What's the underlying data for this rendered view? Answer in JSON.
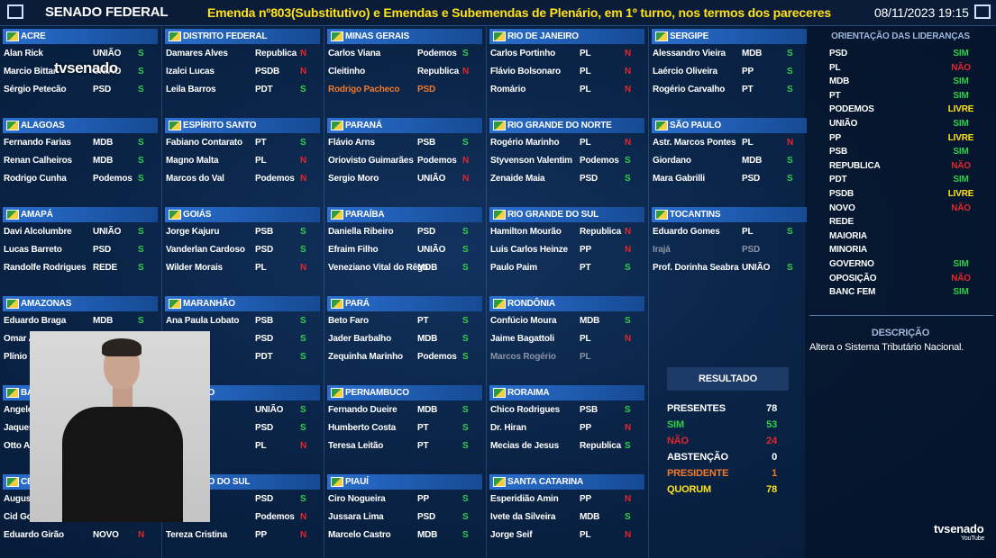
{
  "header": {
    "left": "SENADO FEDERAL",
    "title": "Emenda nº803(Substitutivo) e Emendas e Subemendas de Plenário, em 1º turno, nos termos dos pareceres",
    "datetime": "08/11/2023 19:15"
  },
  "vote_colors": {
    "S": "#2fd04a",
    "N": "#e3262b"
  },
  "columns": [
    {
      "states": [
        {
          "name": "ACRE",
          "senators": [
            {
              "name": "Alan Rick",
              "party": "UNIÃO",
              "vote": "S"
            },
            {
              "name": "Marcio Bittar",
              "party": "UNIÃO",
              "vote": "S"
            },
            {
              "name": "Sérgio Petecão",
              "party": "PSD",
              "vote": "S"
            }
          ]
        },
        {
          "name": "ALAGOAS",
          "senators": [
            {
              "name": "Fernando Farias",
              "party": "MDB",
              "vote": "S"
            },
            {
              "name": "Renan Calheiros",
              "party": "MDB",
              "vote": "S"
            },
            {
              "name": "Rodrigo Cunha",
              "party": "Podemos",
              "vote": "S"
            }
          ]
        },
        {
          "name": "AMAPÁ",
          "senators": [
            {
              "name": "Davi Alcolumbre",
              "party": "UNIÃO",
              "vote": "S"
            },
            {
              "name": "Lucas Barreto",
              "party": "PSD",
              "vote": "S"
            },
            {
              "name": "Randolfe Rodrigues",
              "party": "REDE",
              "vote": "S"
            }
          ]
        },
        {
          "name": "AMAZONAS",
          "senators": [
            {
              "name": "Eduardo Braga",
              "party": "MDB",
              "vote": "S"
            },
            {
              "name": "Omar Az"
            },
            {
              "name": "Plínio V"
            }
          ]
        },
        {
          "name": "BA",
          "senators": [
            {
              "name": "Angelo C"
            },
            {
              "name": "Jaques V"
            },
            {
              "name": "Otto Ale"
            }
          ]
        },
        {
          "name": "CE",
          "senators": [
            {
              "name": "Augusta"
            },
            {
              "name": "Cid Gon"
            },
            {
              "name": "Eduardo Girão",
              "party": "NOVO",
              "vote": "N"
            }
          ]
        }
      ]
    },
    {
      "states": [
        {
          "name": "DISTRITO FEDERAL",
          "senators": [
            {
              "name": "Damares Alves",
              "party": "Republica",
              "vote": "N"
            },
            {
              "name": "Izalci Lucas",
              "party": "PSDB",
              "vote": "N"
            },
            {
              "name": "Leila Barros",
              "party": "PDT",
              "vote": "S"
            }
          ]
        },
        {
          "name": "ESPÍRITO SANTO",
          "senators": [
            {
              "name": "Fabiano Contarato",
              "party": "PT",
              "vote": "S"
            },
            {
              "name": "Magno Malta",
              "party": "PL",
              "vote": "N"
            },
            {
              "name": "Marcos do Val",
              "party": "Podemos",
              "vote": "N"
            }
          ]
        },
        {
          "name": "GOIÁS",
          "senators": [
            {
              "name": "Jorge Kajuru",
              "party": "PSB",
              "vote": "S"
            },
            {
              "name": "Vanderlan Cardoso",
              "party": "PSD",
              "vote": "S"
            },
            {
              "name": "Wilder Morais",
              "party": "PL",
              "vote": "N"
            }
          ]
        },
        {
          "name": "MARANHÃO",
          "senators": [
            {
              "name": "Ana Paula Lobato",
              "party": "PSB",
              "vote": "S"
            },
            {
              "party": "PSD",
              "vote": "S"
            },
            {
              "party": "PDT",
              "vote": "S"
            }
          ]
        },
        {
          "name": "ROSSO",
          "senators": [
            {
              "name": "s",
              "party": "UNIÃO",
              "vote": "S"
            },
            {
              "name": "zetti",
              "party": "PSD",
              "vote": "S"
            },
            {
              "name": "gundes",
              "party": "PL",
              "vote": "N"
            }
          ]
        },
        {
          "name": "ROSSO DO SUL",
          "senators": [
            {
              "party": "PSD",
              "vote": "S"
            },
            {
              "name": "cke",
              "party": "Podemos",
              "vote": "N"
            },
            {
              "name": "Tereza Cristina",
              "party": "PP",
              "vote": "N"
            }
          ]
        }
      ]
    },
    {
      "states": [
        {
          "name": "MINAS GERAIS",
          "senators": [
            {
              "name": "Carlos Viana",
              "party": "Podemos",
              "vote": "S"
            },
            {
              "name": "Cleitinho",
              "party": "Republica",
              "vote": "N"
            },
            {
              "name": "Rodrigo Pacheco",
              "party": "PSD",
              "color": "#f07a2a"
            }
          ]
        },
        {
          "name": "PARANÁ",
          "senators": [
            {
              "name": "Flávio Arns",
              "party": "PSB",
              "vote": "S"
            },
            {
              "name": "Oriovisto Guimarães",
              "party": "Podemos",
              "vote": "N"
            },
            {
              "name": "Sergio Moro",
              "party": "UNIÃO",
              "vote": "N"
            }
          ]
        },
        {
          "name": "PARAÍBA",
          "senators": [
            {
              "name": "Daniella Ribeiro",
              "party": "PSD",
              "vote": "S"
            },
            {
              "name": "Efraim Filho",
              "party": "UNIÃO",
              "vote": "S"
            },
            {
              "name": "Veneziano Vital do Rêgo",
              "party": "MDB",
              "vote": "S"
            }
          ]
        },
        {
          "name": "PARÁ",
          "senators": [
            {
              "name": "Beto Faro",
              "party": "PT",
              "vote": "S"
            },
            {
              "name": "Jader Barbalho",
              "party": "MDB",
              "vote": "S"
            },
            {
              "name": "Zequinha Marinho",
              "party": "Podemos",
              "vote": "S"
            }
          ]
        },
        {
          "name": "PERNAMBUCO",
          "senators": [
            {
              "name": "Fernando Dueire",
              "party": "MDB",
              "vote": "S"
            },
            {
              "name": "Humberto Costa",
              "party": "PT",
              "vote": "S"
            },
            {
              "name": "Teresa Leitão",
              "party": "PT",
              "vote": "S"
            }
          ]
        },
        {
          "name": "PIAUÍ",
          "senators": [
            {
              "name": "Ciro Nogueira",
              "party": "PP",
              "vote": "S"
            },
            {
              "name": "Jussara Lima",
              "party": "PSD",
              "vote": "S"
            },
            {
              "name": "Marcelo Castro",
              "party": "MDB",
              "vote": "S"
            }
          ]
        }
      ]
    },
    {
      "states": [
        {
          "name": "RIO DE JANEIRO",
          "senators": [
            {
              "name": "Carlos Portinho",
              "party": "PL",
              "vote": "N"
            },
            {
              "name": "Flávio Bolsonaro",
              "party": "PL",
              "vote": "N"
            },
            {
              "name": "Romário",
              "party": "PL",
              "vote": "N"
            }
          ]
        },
        {
          "name": "RIO GRANDE DO NORTE",
          "senators": [
            {
              "name": "Rogério Marinho",
              "party": "PL",
              "vote": "N"
            },
            {
              "name": "Styvenson Valentim",
              "party": "Podemos",
              "vote": "S"
            },
            {
              "name": "Zenaide Maia",
              "party": "PSD",
              "vote": "S"
            }
          ]
        },
        {
          "name": "RIO GRANDE DO SUL",
          "senators": [
            {
              "name": "Hamilton Mourão",
              "party": "Republica",
              "vote": "N"
            },
            {
              "name": "Luis Carlos Heinze",
              "party": "PP",
              "vote": "N"
            },
            {
              "name": "Paulo Paim",
              "party": "PT",
              "vote": "S"
            }
          ]
        },
        {
          "name": "RONDÔNIA",
          "senators": [
            {
              "name": "Confúcio Moura",
              "party": "MDB",
              "vote": "S"
            },
            {
              "name": "Jaime Bagattoli",
              "party": "PL",
              "vote": "N"
            },
            {
              "name": "Marcos Rogério",
              "party": "PL",
              "color": "#8a94a6"
            }
          ]
        },
        {
          "name": "RORAIMA",
          "senators": [
            {
              "name": "Chico Rodrigues",
              "party": "PSB",
              "vote": "S"
            },
            {
              "name": "Dr. Hiran",
              "party": "PP",
              "vote": "N"
            },
            {
              "name": "Mecias de Jesus",
              "party": "Republica",
              "vote": "S"
            }
          ]
        },
        {
          "name": "SANTA CATARINA",
          "senators": [
            {
              "name": "Esperidião Amin",
              "party": "PP",
              "vote": "N"
            },
            {
              "name": "Ivete da Silveira",
              "party": "MDB",
              "vote": "S"
            },
            {
              "name": "Jorge Seif",
              "party": "PL",
              "vote": "N"
            }
          ]
        }
      ]
    },
    {
      "states": [
        {
          "name": "SERGIPE",
          "senators": [
            {
              "name": "Alessandro Vieira",
              "party": "MDB",
              "vote": "S"
            },
            {
              "name": "Laércio Oliveira",
              "party": "PP",
              "vote": "S"
            },
            {
              "name": "Rogério Carvalho",
              "party": "PT",
              "vote": "S"
            }
          ]
        },
        {
          "name": "SÃO PAULO",
          "senators": [
            {
              "name": "Astr. Marcos Pontes",
              "party": "PL",
              "vote": "N"
            },
            {
              "name": "Giordano",
              "party": "MDB",
              "vote": "S"
            },
            {
              "name": "Mara Gabrilli",
              "party": "PSD",
              "vote": "S"
            }
          ]
        },
        {
          "name": "TOCANTINS",
          "senators": [
            {
              "name": "Eduardo Gomes",
              "party": "PL",
              "vote": "S"
            },
            {
              "name": "Irajá",
              "party": "PSD",
              "color": "#8a94a6"
            },
            {
              "name": "Prof. Dorinha Seabra",
              "party": "UNIÃO",
              "vote": "S"
            }
          ]
        }
      ]
    }
  ],
  "orientation": {
    "title": "ORIENTAÇÃO DAS LIDERANÇAS",
    "colors": {
      "SIM": "#2fd04a",
      "NÃO": "#e3262b",
      "LIVRE": "#ffe11a"
    },
    "items": [
      {
        "party": "PSD",
        "vote": "SIM"
      },
      {
        "party": "PL",
        "vote": "NÃO"
      },
      {
        "party": "MDB",
        "vote": "SIM"
      },
      {
        "party": "PT",
        "vote": "SIM"
      },
      {
        "party": "PODEMOS",
        "vote": "LIVRE"
      },
      {
        "party": "UNIÃO",
        "vote": "SIM"
      },
      {
        "party": "PP",
        "vote": "LIVRE"
      },
      {
        "party": "PSB",
        "vote": "SIM"
      },
      {
        "party": "REPUBLICA",
        "vote": "NÃO"
      },
      {
        "party": "PDT",
        "vote": "SIM"
      },
      {
        "party": "PSDB",
        "vote": "LIVRE"
      },
      {
        "party": "NOVO",
        "vote": "NÃO"
      },
      {
        "party": "REDE"
      },
      {
        "party": "MAIORIA"
      },
      {
        "party": "MINORIA"
      },
      {
        "party": "GOVERNO",
        "vote": "SIM"
      },
      {
        "party": "OPOSIÇÃO",
        "vote": "NÃO"
      },
      {
        "party": "BANC FEM",
        "vote": "SIM"
      }
    ]
  },
  "description": {
    "title": "DESCRIÇÃO",
    "text": "Altera o Sistema Tributário Nacional."
  },
  "result": {
    "title": "RESULTADO",
    "rows": [
      {
        "label": "PRESENTES",
        "value": 78,
        "color": "#ffffff"
      },
      {
        "label": "SIM",
        "value": 53,
        "color": "#2fd04a"
      },
      {
        "label": "NÃO",
        "value": 24,
        "color": "#e3262b"
      },
      {
        "label": "ABSTENÇÃO",
        "value": 0,
        "color": "#ffffff"
      },
      {
        "label": "PRESIDENTE",
        "value": 1,
        "color": "#f07a2a"
      },
      {
        "label": "QUORUM",
        "value": 78,
        "color": "#ffe11a"
      }
    ]
  },
  "logos": {
    "overlay": "tvsenado",
    "corner": "tvsenado",
    "corner_sub": "YouTube"
  }
}
